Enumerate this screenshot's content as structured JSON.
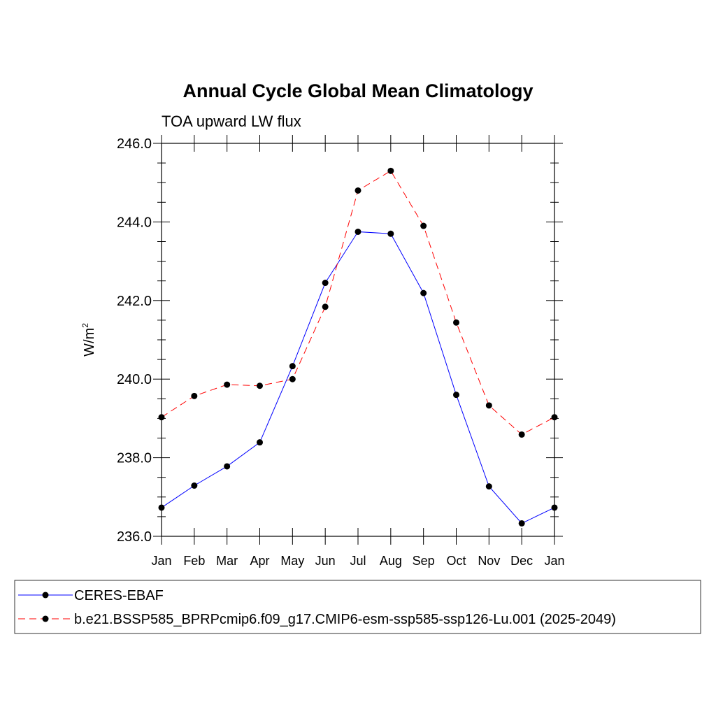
{
  "chart_data": {
    "type": "line",
    "title": "Annual Cycle Global Mean Climatology",
    "subtitle": "TOA upward LW flux",
    "ylabel": "W/m",
    "ylabel_superscript": "2",
    "xlabel": "",
    "categories": [
      "Jan",
      "Feb",
      "Mar",
      "Apr",
      "May",
      "Jun",
      "Jul",
      "Aug",
      "Sep",
      "Oct",
      "Nov",
      "Dec",
      "Jan"
    ],
    "ylim": [
      236.0,
      246.0
    ],
    "yticks": [
      236.0,
      238.0,
      240.0,
      242.0,
      244.0,
      246.0
    ],
    "ytick_labels": [
      "236.0",
      "238.0",
      "240.0",
      "242.0",
      "244.0",
      "246.0"
    ],
    "grid": false,
    "legend_position": "bottom",
    "series": [
      {
        "name": "CERES-EBAF",
        "color": "#0000ff",
        "dash": "solid",
        "values": [
          236.73,
          237.29,
          237.78,
          238.39,
          240.33,
          242.45,
          243.75,
          243.7,
          242.19,
          239.6,
          237.27,
          236.33,
          236.73
        ]
      },
      {
        "name": "b.e21.BSSP585_BPRPcmip6.f09_g17.CMIP6-esm-ssp585-ssp126-Lu.001 (2025-2049)",
        "color": "#ff0000",
        "dash": "dashed",
        "values": [
          239.03,
          239.57,
          239.86,
          239.83,
          240.0,
          241.84,
          244.8,
          245.3,
          243.9,
          241.44,
          239.33,
          238.59,
          239.03
        ]
      }
    ]
  }
}
